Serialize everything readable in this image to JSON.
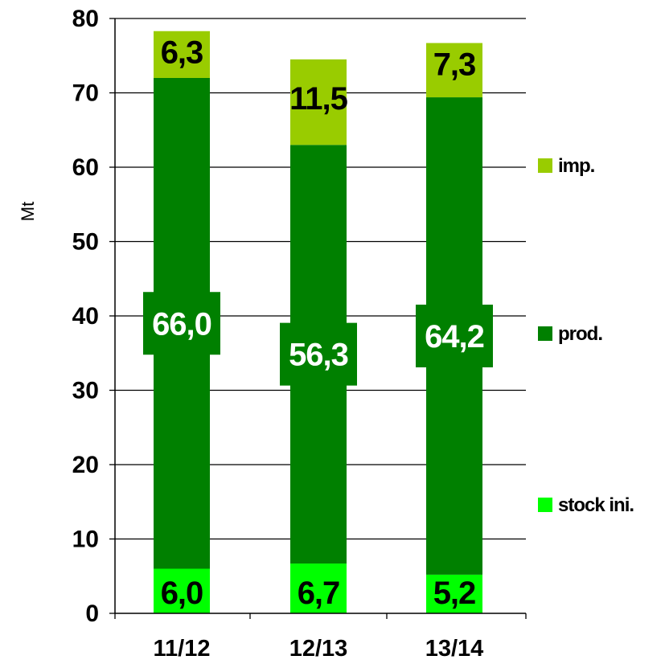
{
  "chart_data": {
    "type": "bar",
    "stacked": true,
    "categories": [
      "11/12",
      "12/13",
      "13/14"
    ],
    "series": [
      {
        "name": "stock ini.",
        "values": [
          6.0,
          6.7,
          5.2
        ],
        "labels": [
          "6,0",
          "6,7",
          "5,2"
        ],
        "color": "#00ff00",
        "label_color": "#000000"
      },
      {
        "name": "prod.",
        "values": [
          66.0,
          56.3,
          64.2
        ],
        "labels": [
          "66,0",
          "56,3",
          "64,2"
        ],
        "color": "#008000",
        "label_color": "#ffffff"
      },
      {
        "name": "imp.",
        "values": [
          6.3,
          11.5,
          7.3
        ],
        "labels": [
          "6,3",
          "11,5",
          "7,3"
        ],
        "color": "#99cc00",
        "label_color": "#000000"
      }
    ],
    "ylabel": "Mt",
    "xlabel": "",
    "ylim": [
      0,
      80
    ],
    "yticks": [
      0,
      10,
      20,
      30,
      40,
      50,
      60,
      70,
      80
    ],
    "grid": true,
    "legend_position": "right",
    "legend_order": [
      "imp.",
      "prod.",
      "stock ini."
    ]
  }
}
